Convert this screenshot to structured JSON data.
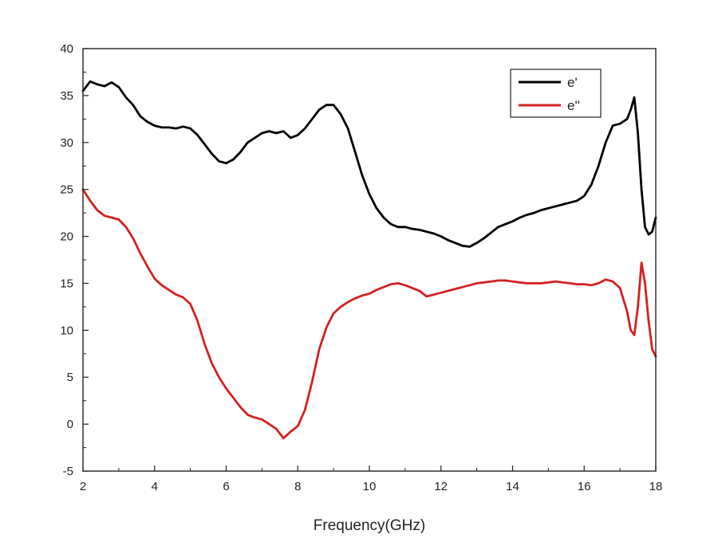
{
  "chart_data": {
    "type": "line",
    "title": "",
    "xlabel": "Frequency(GHz)",
    "ylabel": "",
    "xlim": [
      2,
      18
    ],
    "ylim": [
      -5,
      40
    ],
    "xticks": [
      2,
      4,
      6,
      8,
      10,
      12,
      14,
      16,
      18
    ],
    "yticks": [
      -5,
      0,
      5,
      10,
      15,
      20,
      25,
      30,
      35,
      40
    ],
    "grid": false,
    "legend": {
      "position": "top-right"
    },
    "series": [
      {
        "name": "e'",
        "color": "#000000",
        "x": [
          2.0,
          2.2,
          2.4,
          2.6,
          2.8,
          3.0,
          3.2,
          3.4,
          3.6,
          3.8,
          4.0,
          4.2,
          4.4,
          4.6,
          4.8,
          5.0,
          5.2,
          5.4,
          5.6,
          5.8,
          6.0,
          6.2,
          6.4,
          6.6,
          6.8,
          7.0,
          7.2,
          7.4,
          7.6,
          7.8,
          8.0,
          8.2,
          8.4,
          8.6,
          8.8,
          9.0,
          9.2,
          9.4,
          9.6,
          9.8,
          10.0,
          10.2,
          10.4,
          10.6,
          10.8,
          11.0,
          11.2,
          11.4,
          11.6,
          11.8,
          12.0,
          12.2,
          12.4,
          12.6,
          12.8,
          13.0,
          13.2,
          13.4,
          13.6,
          13.8,
          14.0,
          14.2,
          14.4,
          14.6,
          14.8,
          15.0,
          15.2,
          15.4,
          15.6,
          15.8,
          16.0,
          16.2,
          16.4,
          16.6,
          16.8,
          17.0,
          17.2,
          17.3,
          17.4,
          17.5,
          17.6,
          17.7,
          17.8,
          17.9,
          18.0
        ],
        "y": [
          35.5,
          36.5,
          36.2,
          36.0,
          36.4,
          35.9,
          34.8,
          34.0,
          32.8,
          32.2,
          31.8,
          31.6,
          31.6,
          31.5,
          31.7,
          31.5,
          30.8,
          29.8,
          28.8,
          28.0,
          27.8,
          28.2,
          29.0,
          30.0,
          30.5,
          31.0,
          31.2,
          31.0,
          31.2,
          30.5,
          30.8,
          31.5,
          32.5,
          33.5,
          34.0,
          34.0,
          33.0,
          31.5,
          29.0,
          26.5,
          24.5,
          23.0,
          22.0,
          21.3,
          21.0,
          21.0,
          20.8,
          20.7,
          20.5,
          20.3,
          20.0,
          19.6,
          19.3,
          19.0,
          18.9,
          19.3,
          19.8,
          20.4,
          21.0,
          21.3,
          21.6,
          22.0,
          22.3,
          22.5,
          22.8,
          23.0,
          23.2,
          23.4,
          23.6,
          23.8,
          24.3,
          25.5,
          27.5,
          30.0,
          31.8,
          32.0,
          32.5,
          33.5,
          34.8,
          31.0,
          25.0,
          21.0,
          20.2,
          20.5,
          22.0
        ]
      },
      {
        "name": "e''",
        "color": "#d42121",
        "x": [
          2.0,
          2.2,
          2.4,
          2.6,
          2.8,
          3.0,
          3.2,
          3.4,
          3.6,
          3.8,
          4.0,
          4.2,
          4.4,
          4.6,
          4.8,
          5.0,
          5.2,
          5.4,
          5.6,
          5.8,
          6.0,
          6.2,
          6.4,
          6.6,
          6.8,
          7.0,
          7.2,
          7.4,
          7.6,
          7.8,
          8.0,
          8.2,
          8.4,
          8.6,
          8.8,
          9.0,
          9.2,
          9.4,
          9.6,
          9.8,
          10.0,
          10.2,
          10.4,
          10.6,
          10.8,
          11.0,
          11.2,
          11.4,
          11.6,
          11.8,
          12.0,
          12.2,
          12.4,
          12.6,
          12.8,
          13.0,
          13.2,
          13.4,
          13.6,
          13.8,
          14.0,
          14.2,
          14.4,
          14.6,
          14.8,
          15.0,
          15.2,
          15.4,
          15.6,
          15.8,
          16.0,
          16.2,
          16.4,
          16.6,
          16.8,
          17.0,
          17.2,
          17.3,
          17.4,
          17.5,
          17.6,
          17.7,
          17.8,
          17.9,
          18.0
        ],
        "y": [
          25.0,
          23.8,
          22.8,
          22.2,
          22.0,
          21.8,
          21.0,
          19.8,
          18.2,
          16.8,
          15.5,
          14.8,
          14.3,
          13.8,
          13.5,
          12.8,
          11.0,
          8.5,
          6.5,
          5.0,
          3.8,
          2.8,
          1.8,
          1.0,
          0.7,
          0.5,
          0.0,
          -0.5,
          -1.5,
          -0.8,
          -0.2,
          1.5,
          4.5,
          8.0,
          10.3,
          11.8,
          12.5,
          13.0,
          13.4,
          13.7,
          13.9,
          14.3,
          14.6,
          14.9,
          15.0,
          14.8,
          14.5,
          14.2,
          13.6,
          13.8,
          14.0,
          14.2,
          14.4,
          14.6,
          14.8,
          15.0,
          15.1,
          15.2,
          15.3,
          15.3,
          15.2,
          15.1,
          15.0,
          15.0,
          15.0,
          15.1,
          15.2,
          15.1,
          15.0,
          14.9,
          14.9,
          14.8,
          15.0,
          15.4,
          15.2,
          14.5,
          12.0,
          10.0,
          9.5,
          12.5,
          17.2,
          15.0,
          11.0,
          8.0,
          7.2
        ]
      }
    ]
  }
}
